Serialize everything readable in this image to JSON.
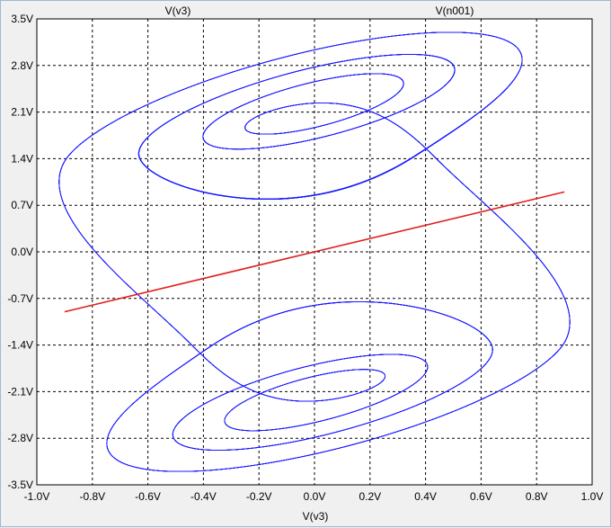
{
  "chart_data": {
    "type": "line",
    "xlabel": "V(v3)",
    "ylabel": "",
    "xlim": [
      -1.0,
      1.0
    ],
    "ylim": [
      -3.5,
      3.5
    ],
    "grid": true,
    "legend_placement": "top",
    "x_ticks": [
      "-1.0V",
      "-0.8V",
      "-0.6V",
      "-0.4V",
      "-0.2V",
      "0.0V",
      "0.2V",
      "0.4V",
      "0.6V",
      "0.8V",
      "1.0V"
    ],
    "y_ticks": [
      "3.5V",
      "2.8V",
      "2.1V",
      "1.4V",
      "0.7V",
      "0.0V",
      "-0.7V",
      "-1.4V",
      "-2.1V",
      "-2.8V",
      "-3.5V"
    ],
    "series": [
      {
        "name": "V(v3)",
        "color": "#e02020",
        "x": [
          -0.9,
          0.9
        ],
        "y": [
          -0.9,
          0.9
        ]
      },
      {
        "name": "V(n001)",
        "color": "#1a1aff",
        "attractor": {
          "x_range": [
            -0.92,
            0.92
          ],
          "y_range": [
            -3.3,
            3.3
          ],
          "upper_eye": [
            0.1,
            2.4
          ],
          "lower_eye": [
            -0.03,
            -2.28
          ]
        }
      }
    ]
  }
}
